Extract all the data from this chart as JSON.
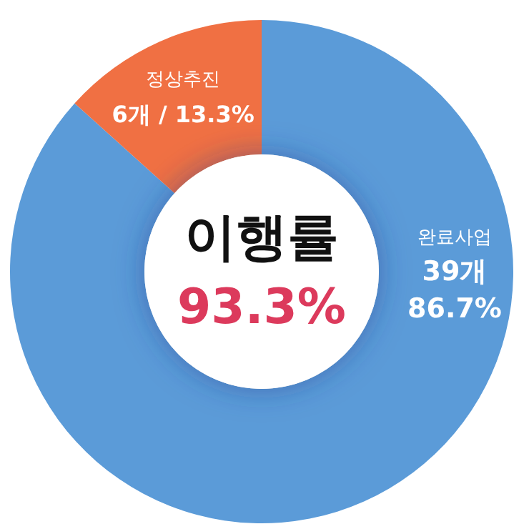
{
  "chart_data": {
    "type": "donut",
    "title": "이행률",
    "subtitle": "93.3%",
    "categories": [
      "완료사업",
      "정상추진"
    ],
    "values": [
      39,
      6
    ],
    "colors": [
      "#5b9bd8",
      "#f07043"
    ],
    "value_labels": [
      "39개\n86.7%",
      "6개 / 13.3%"
    ]
  }
}
